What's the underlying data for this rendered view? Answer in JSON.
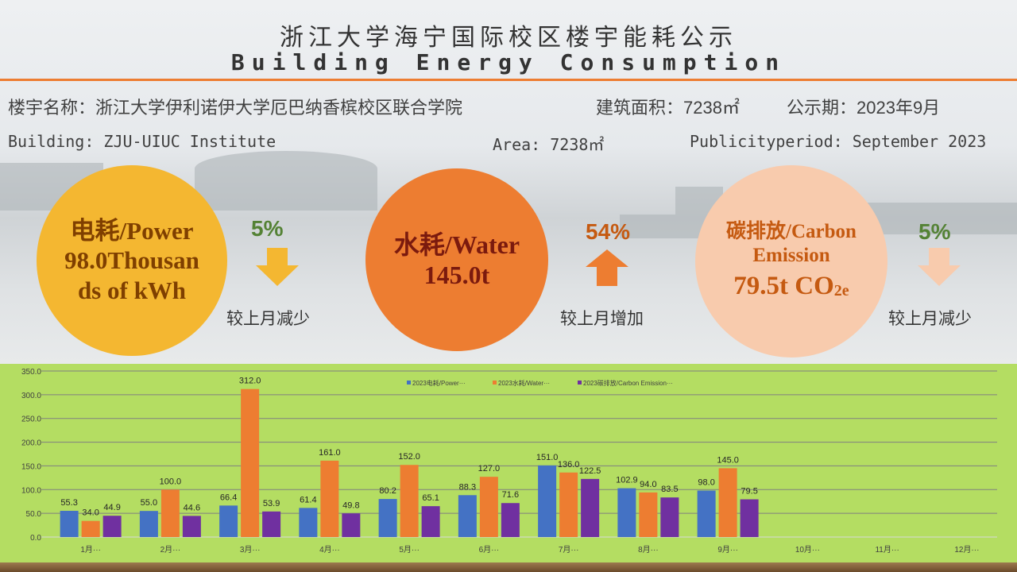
{
  "header": {
    "title_cn": "浙江大学海宁国际校区楼宇能耗公示",
    "title_en": "Building Energy Consumption"
  },
  "info": {
    "building_cn": "楼宇名称：浙江大学伊利诺伊大学厄巴纳香槟校区联合学院",
    "area_cn": "建筑面积：7238㎡",
    "period_cn": "公示期：2023年9月",
    "building_en": "Building: ZJU-UIUC Institute",
    "area_en": "Area: 7238㎡",
    "period_en": "Publicityperiod: September 2023"
  },
  "metrics": [
    {
      "line1": "电耗/Power",
      "line2": "98.0Thousan",
      "line3": "ds of kWh",
      "change": "5%",
      "direction": "down",
      "compare": "较上月减少",
      "color": "#F4B731",
      "change_color": "#548235"
    },
    {
      "line1": "水耗/Water",
      "line2": "145.0t",
      "change": "54%",
      "direction": "up",
      "compare": "较上月增加",
      "color": "#ED7D31",
      "change_color": "#C55A11"
    },
    {
      "line1": "碳排放/Carbon",
      "line2": "Emission",
      "line3": "79.5t CO",
      "line3_sub": "2e",
      "change": "5%",
      "direction": "down",
      "compare": "较上月减少",
      "color": "#F8CBAD",
      "change_color": "#548235"
    }
  ],
  "chart_data": {
    "type": "bar",
    "categories": [
      "1月···",
      "2月···",
      "3月···",
      "4月···",
      "5月···",
      "6月···",
      "7月···",
      "8月···",
      "9月···",
      "10月···",
      "11月···",
      "12月···"
    ],
    "series": [
      {
        "name": "2023电耗/Power···",
        "color": "#4472C4",
        "values": [
          55.3,
          55.0,
          66.4,
          61.4,
          80.2,
          88.3,
          151.0,
          102.9,
          98.0,
          null,
          null,
          null
        ]
      },
      {
        "name": "2023水耗/Water···",
        "color": "#ED7D31",
        "values": [
          34.0,
          100.0,
          312.0,
          161.0,
          152.0,
          127.0,
          136.0,
          94.0,
          145.0,
          null,
          null,
          null
        ]
      },
      {
        "name": "2023碳排放/Carbon Emission···",
        "color": "#7030A0",
        "values": [
          44.9,
          44.6,
          53.9,
          49.8,
          65.1,
          71.6,
          122.5,
          83.5,
          79.5,
          null,
          null,
          null
        ]
      }
    ],
    "yticks": [
      "0.0",
      "50.0",
      "100.0",
      "150.0",
      "200.0",
      "250.0",
      "300.0",
      "350.0"
    ],
    "ylim": [
      0,
      350
    ],
    "grid": true,
    "legend": "top-center"
  }
}
